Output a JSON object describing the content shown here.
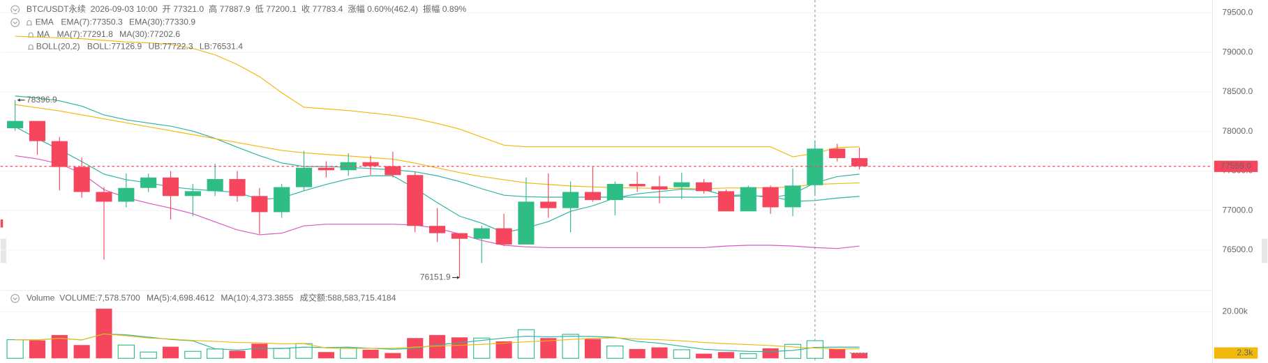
{
  "legend": {
    "symbol": "BTC/USDT永续",
    "time": "2026-09-03 10:00",
    "fields": [
      {
        "name": "开",
        "value": "77321.0"
      },
      {
        "name": "高",
        "value": "77887.9"
      },
      {
        "name": "低",
        "value": "77200.1"
      },
      {
        "name": "收",
        "value": "77783.4"
      },
      {
        "name": "涨幅",
        "value": "0.60%(462.4)"
      },
      {
        "name": "振幅",
        "value": "0.89%"
      }
    ],
    "rows": [
      {
        "name": "EMA",
        "items": [
          {
            "text": "EMA(7):77350.3",
            "color": "#2bb3a3"
          },
          {
            "text": "EMA(30):77330.9",
            "color": "#f0b90b"
          }
        ]
      },
      {
        "name": "MA",
        "items": [
          {
            "text": "MA(7):77291.8",
            "color": "#2bb3a3"
          },
          {
            "text": "MA(30):77202.6",
            "color": "#f0b90b"
          }
        ]
      },
      {
        "name": "BOLL(20,2)",
        "items": [
          {
            "text": "BOLL:77126.9",
            "color": "#2bb3a3"
          },
          {
            "text": "UB:77722.3",
            "color": "#f0b90b"
          },
          {
            "text": "LB:76531.4",
            "color": "#d957c2"
          }
        ]
      }
    ],
    "volume_row": {
      "name": "Volume",
      "items": [
        {
          "text": "VOLUME:7,578.5700",
          "color": "#777777"
        },
        {
          "text": "MA(5):4,698.4612",
          "color": "#2bb3a3"
        },
        {
          "text": "MA(10):4,373.3855",
          "color": "#f0b90b"
        },
        {
          "text": "成交额:588,583,715.4184",
          "color": "#777777"
        }
      ]
    }
  },
  "chart_data": [
    {
      "type": "candlestick",
      "up_color": "#2ebd85",
      "down_color": "#f6465d",
      "open": [
        78041,
        78133,
        77878,
        77551,
        77235,
        77112,
        77286,
        77418,
        77184,
        77245,
        77398,
        77184,
        76980,
        77296,
        77541,
        77510,
        77612,
        77561,
        77449,
        76806,
        76714,
        76643,
        76776,
        76571,
        77112,
        77031,
        77235,
        77133,
        77337,
        77306,
        77296,
        77357,
        77245,
        76990,
        77296,
        77041,
        77321.0,
        77783,
        77663
      ],
      "high": [
        78396.9,
        78133,
        77929,
        77673,
        77296,
        77469,
        77469,
        77500,
        77337,
        77592,
        77500,
        77286,
        77337,
        77755,
        77622,
        77724,
        77694,
        77745,
        77490,
        77031,
        76714,
        76806,
        76959,
        77418,
        77469,
        77367,
        77551,
        77367,
        77490,
        77439,
        77480,
        77398,
        77265,
        77316,
        77316,
        77531,
        77887.9,
        77843,
        77796
      ],
      "low": [
        78010,
        77704,
        77255,
        77163,
        76378,
        77041,
        77235,
        76888,
        76929,
        77184,
        77112,
        76704,
        76908,
        77245,
        77418,
        77439,
        77449,
        77418,
        76725,
        76602,
        76151.9,
        76337,
        76551,
        76571,
        76908,
        76725,
        77112,
        76939,
        77235,
        77092,
        77143,
        77214,
        76990,
        76990,
        76959,
        76929,
        77200.1,
        77622,
        77520
      ],
      "close": [
        78133,
        77878,
        77551,
        77235,
        77112,
        77286,
        77418,
        77184,
        77245,
        77398,
        77184,
        76980,
        77296,
        77541,
        77510,
        77612,
        77561,
        77449,
        76806,
        76714,
        76643,
        76776,
        76571,
        77112,
        77031,
        77235,
        77133,
        77337,
        77306,
        77265,
        77357,
        77245,
        76990,
        77296,
        77041,
        77316,
        77783.4,
        77663,
        77559
      ],
      "ylim": [
        75990,
        79663
      ],
      "yticks": [
        {
          "value": 76500,
          "label": "76500.0"
        },
        {
          "value": 77000,
          "label": "77000.0"
        },
        {
          "value": 77500,
          "label": "77500.0"
        },
        {
          "value": 78000,
          "label": "78000.0"
        },
        {
          "value": 78500,
          "label": "78500.0"
        },
        {
          "value": 79000,
          "label": "79000.0"
        },
        {
          "value": 79500,
          "label": "79500.0"
        }
      ],
      "last_price": {
        "value": 77559,
        "label": "77559.0",
        "color": "#f6465d"
      },
      "annotations": [
        {
          "value": 78396.9,
          "label": "78396.9",
          "index": 0,
          "side": "right"
        },
        {
          "value": 76151.9,
          "label": "76151.9",
          "index": 20,
          "side": "left"
        }
      ],
      "overlays": [
        {
          "color": "#f0b90b",
          "values": [
            79204,
            79194,
            79184,
            79173,
            79153,
            79133,
            79122,
            79102,
            79051,
            78969,
            78847,
            78694,
            78490,
            78306,
            78286,
            78265,
            78235,
            78204,
            78163,
            78102,
            78031,
            77929,
            77827,
            77806,
            77806,
            77806,
            77806,
            77806,
            77806,
            77806,
            77806,
            77806,
            77806,
            77806,
            77806,
            77680,
            77722.3,
            77796,
            77806
          ]
        },
        {
          "color": "#d957c2",
          "values": [
            77694,
            77653,
            77592,
            77469,
            77265,
            77163,
            77092,
            77031,
            76959,
            76857,
            76755,
            76694,
            76714,
            76806,
            76827,
            76827,
            76827,
            76827,
            76816,
            76776,
            76704,
            76622,
            76561,
            76541,
            76531,
            76531,
            76531,
            76531,
            76531,
            76531,
            76531,
            76531,
            76551,
            76561,
            76561,
            76551,
            76531.4,
            76520,
            76551
          ]
        },
        {
          "color": "#2bb3a3",
          "values": [
            78449,
            78424,
            78388,
            78321,
            78209,
            78148,
            78107,
            78067,
            78005,
            77913,
            77801,
            77694,
            77602,
            77556,
            77557,
            77546,
            77531,
            77516,
            77490,
            77439,
            77368,
            77276,
            77194,
            77174,
            77169,
            77169,
            77169,
            77169,
            77169,
            77169,
            77169,
            77169,
            77179,
            77184,
            77184,
            77116,
            77126.9,
            77158,
            77179
          ]
        },
        {
          "color": "#f0b90b",
          "values": [
            78340,
            78300,
            78260,
            78210,
            78160,
            78110,
            78060,
            78010,
            77960,
            77910,
            77860,
            77810,
            77760,
            77730,
            77710,
            77690,
            77670,
            77650,
            77600,
            77540,
            77480,
            77430,
            77390,
            77350,
            77330,
            77310,
            77300,
            77290,
            77285,
            77280,
            77280,
            77275,
            77285,
            77285,
            77290,
            77300,
            77330.9,
            77340,
            77350
          ]
        },
        {
          "color": "#2bb3a3",
          "values": [
            78060,
            77910,
            77770,
            77620,
            77460,
            77390,
            77350,
            77300,
            77270,
            77250,
            77230,
            77140,
            77160,
            77250,
            77330,
            77400,
            77440,
            77440,
            77280,
            77100,
            76930,
            76840,
            76720,
            76780,
            76860,
            76990,
            77060,
            77160,
            77210,
            77240,
            77270,
            77260,
            77190,
            77200,
            77160,
            77210,
            77350.3,
            77430,
            77460
          ]
        }
      ]
    },
    {
      "type": "volume",
      "up_color": "#2ebd85",
      "down_color": "#f6465d",
      "values": [
        8000,
        7700,
        10000,
        5700,
        21300,
        5700,
        2700,
        5000,
        3000,
        4000,
        3300,
        6300,
        4300,
        6300,
        2700,
        4300,
        3700,
        2300,
        8700,
        10000,
        9000,
        8700,
        7300,
        12300,
        8700,
        10300,
        8300,
        5300,
        4000,
        4700,
        3700,
        2000,
        2700,
        2000,
        4300,
        6000,
        7578.57,
        4000,
        2300
      ],
      "ylim": [
        -2000,
        25000
      ],
      "yticks": [
        {
          "value": 20000,
          "label": "20.00k"
        }
      ],
      "last": {
        "value": 2300,
        "label": "2.3k",
        "color": "#f0b90b"
      },
      "overlays": [
        {
          "color": "#2bb3a3",
          "values": [
            8000,
            7900,
            8600,
            7900,
            10500,
            10100,
            9100,
            8100,
            7500,
            4100,
            3600,
            4300,
            4200,
            4800,
            4600,
            4800,
            4300,
            3900,
            4300,
            5800,
            6700,
            7700,
            8700,
            9500,
            9200,
            9500,
            9400,
            9000,
            7300,
            6500,
            5200,
            3900,
            3400,
            3000,
            2900,
            3400,
            4698.4612,
            4800,
            4800
          ]
        },
        {
          "color": "#f0b90b",
          "values": [
            8000,
            7900,
            8600,
            7900,
            10500,
            9700,
            8700,
            8300,
            7700,
            7300,
            6800,
            6700,
            6200,
            6300,
            4400,
            4200,
            4300,
            4300,
            4800,
            5300,
            5600,
            6000,
            6500,
            7100,
            7500,
            8100,
            8600,
            8800,
            8300,
            8000,
            7500,
            6800,
            6300,
            5900,
            5500,
            4900,
            4373.3855,
            4000,
            4100
          ]
        }
      ]
    }
  ]
}
